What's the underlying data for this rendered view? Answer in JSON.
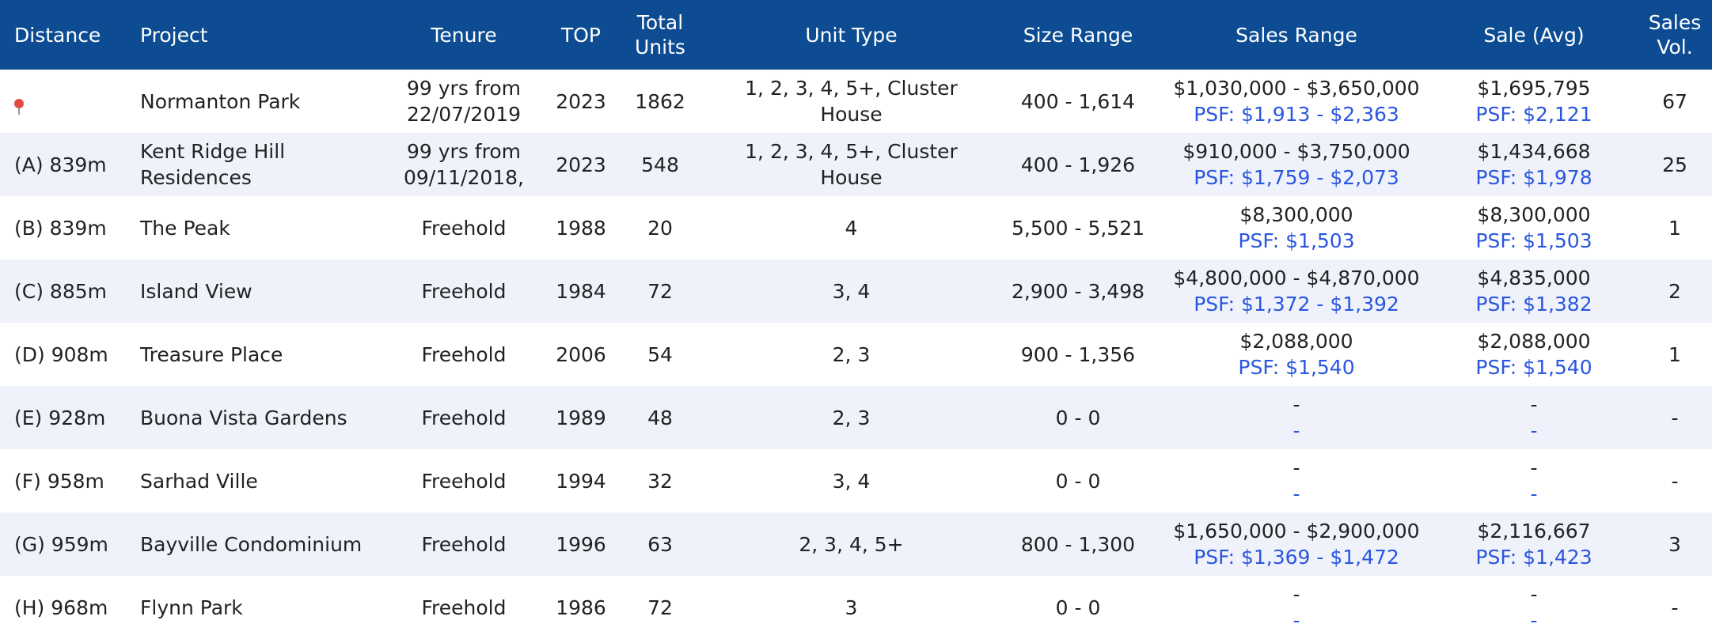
{
  "table": {
    "headers": [
      "Distance",
      "Project",
      "Tenure",
      "TOP",
      "Total Units",
      "Unit Type",
      "Size Range",
      "Sales Range",
      "Sale (Avg)",
      "Sales Vol."
    ],
    "rows": [
      [
        null,
        "Normanton Park",
        "99 yrs from 22/07/2019",
        "2023",
        "1862",
        "1, 2, 3, 4, 5+, Cluster House",
        "400 - 1,614",
        [
          "$1,030,000 - $3,650,000",
          "PSF: $1,913 - $2,363"
        ],
        [
          "$1,695,795",
          "PSF: $2,121"
        ],
        "67"
      ],
      [
        "(A) 839m",
        "Kent Ridge Hill Residences",
        "99 yrs from 09/11/2018,",
        "2023",
        "548",
        "1, 2, 3, 4, 5+, Cluster House",
        "400 - 1,926",
        [
          "$910,000 - $3,750,000",
          "PSF: $1,759 - $2,073"
        ],
        [
          "$1,434,668",
          "PSF: $1,978"
        ],
        "25"
      ],
      [
        "(B) 839m",
        "The Peak",
        "Freehold",
        "1988",
        "20",
        "4",
        "5,500 - 5,521",
        [
          "$8,300,000",
          "PSF: $1,503"
        ],
        [
          "$8,300,000",
          "PSF: $1,503"
        ],
        "1"
      ],
      [
        "(C) 885m",
        "Island View",
        "Freehold",
        "1984",
        "72",
        "3, 4",
        "2,900 - 3,498",
        [
          "$4,800,000 - $4,870,000",
          "PSF: $1,372 - $1,392"
        ],
        [
          "$4,835,000",
          "PSF: $1,382"
        ],
        "2"
      ],
      [
        "(D) 908m",
        "Treasure Place",
        "Freehold",
        "2006",
        "54",
        "2, 3",
        "900 - 1,356",
        [
          "$2,088,000",
          "PSF: $1,540"
        ],
        [
          "$2,088,000",
          "PSF: $1,540"
        ],
        "1"
      ],
      [
        "(E) 928m",
        "Buona Vista Gardens",
        "Freehold",
        "1989",
        "48",
        "2, 3",
        "0 - 0",
        [
          "-",
          "-"
        ],
        [
          "-",
          "-"
        ],
        "-"
      ],
      [
        "(F) 958m",
        "Sarhad Ville",
        "Freehold",
        "1994",
        "32",
        "3, 4",
        "0 - 0",
        [
          "-",
          "-"
        ],
        [
          "-",
          "-"
        ],
        "-"
      ],
      [
        "(G) 959m",
        "Bayville Condominium",
        "Freehold",
        "1996",
        "63",
        "2, 3, 4, 5+",
        "800 - 1,300",
        [
          "$1,650,000 - $2,900,000",
          "PSF: $1,369 - $1,472"
        ],
        [
          "$2,116,667",
          "PSF: $1,423"
        ],
        "3"
      ],
      [
        "(H) 968m",
        "Flynn Park",
        "Freehold",
        "1986",
        "72",
        "3",
        "0 - 0",
        [
          "-",
          "-"
        ],
        [
          "-",
          "-"
        ],
        "-"
      ]
    ]
  }
}
